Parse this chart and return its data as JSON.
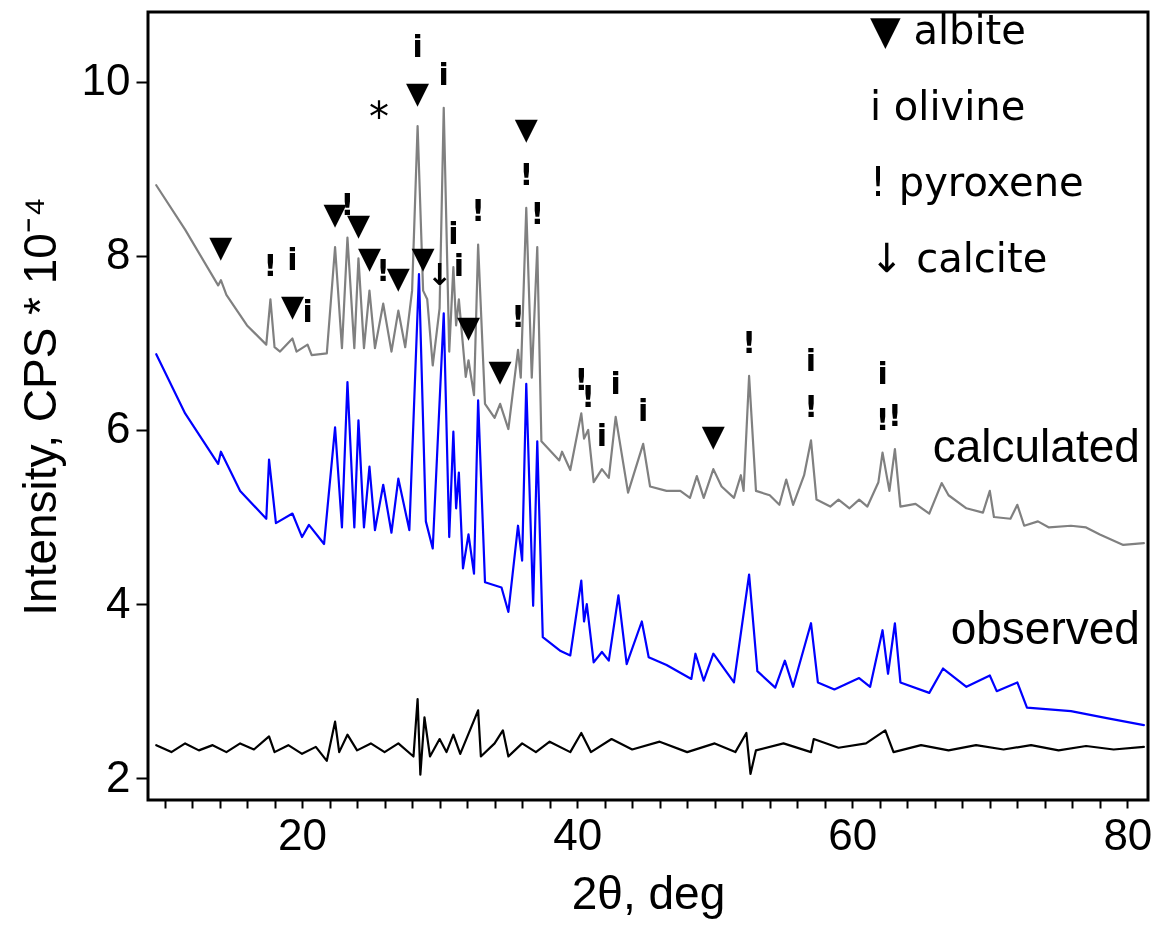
{
  "chart_data": {
    "type": "line",
    "xlabel": "2θ, deg",
    "ylabel": "Intensity, CPS * 10⁻⁴",
    "xlim": [
      8.8,
      81.5
    ],
    "ylim": [
      1.75,
      10.8
    ],
    "xticks": [
      {
        "value": 10,
        "label": null
      },
      {
        "value": 12,
        "label": null
      },
      {
        "value": 14,
        "label": null
      },
      {
        "value": 16,
        "label": null
      },
      {
        "value": 18,
        "label": null
      },
      20,
      {
        "value": 22,
        "label": null
      },
      {
        "value": 24,
        "label": null
      },
      {
        "value": 26,
        "label": null
      },
      {
        "value": 28,
        "label": null
      },
      {
        "value": 30,
        "label": null
      },
      {
        "value": 32,
        "label": null
      },
      {
        "value": 34,
        "label": null
      },
      {
        "value": 36,
        "label": null
      },
      {
        "value": 38,
        "label": null
      },
      40,
      {
        "value": 42,
        "label": null
      },
      {
        "value": 44,
        "label": null
      },
      {
        "value": 46,
        "label": null
      },
      {
        "value": 48,
        "label": null
      },
      {
        "value": 50,
        "label": null
      },
      {
        "value": 52,
        "label": null
      },
      {
        "value": 54,
        "label": null
      },
      {
        "value": 56,
        "label": null
      },
      {
        "value": 58,
        "label": null
      },
      60,
      {
        "value": 62,
        "label": null
      },
      {
        "value": 64,
        "label": null
      },
      {
        "value": 66,
        "label": null
      },
      {
        "value": 68,
        "label": null
      },
      {
        "value": 70,
        "label": null
      },
      {
        "value": 72,
        "label": null
      },
      {
        "value": 74,
        "label": null
      },
      {
        "value": 76,
        "label": null
      },
      {
        "value": 78,
        "label": null
      },
      80
    ],
    "yticks": [
      2,
      4,
      6,
      8,
      10
    ],
    "series": [
      {
        "name": "calculated",
        "color": "#808080",
        "x": [
          9.4,
          11.5,
          13.9,
          14.1,
          14.5,
          16.0,
          17.4,
          17.7,
          18.0,
          18.4,
          19.3,
          19.6,
          20.4,
          20.7,
          21.8,
          22.4,
          22.9,
          23.3,
          23.8,
          24.1,
          24.5,
          24.9,
          25.3,
          25.9,
          26.5,
          27.0,
          27.5,
          28.0,
          28.4,
          28.8,
          29.1,
          29.5,
          30.0,
          30.3,
          30.7,
          31.0,
          31.2,
          31.4,
          31.9,
          32.1,
          32.5,
          32.8,
          33.3,
          34.0,
          34.4,
          35.0,
          35.7,
          35.9,
          36.3,
          36.7,
          37.1,
          37.4,
          38.7,
          38.9,
          39.5,
          40.3,
          40.5,
          40.8,
          41.2,
          41.8,
          42.3,
          42.8,
          43.7,
          44.8,
          45.3,
          46.5,
          47.5,
          48.2,
          48.7,
          49.2,
          49.9,
          50.5,
          51.4,
          51.9,
          52.1,
          52.5,
          53.0,
          54.0,
          54.7,
          55.2,
          55.7,
          56.5,
          57.0,
          57.4,
          58.4,
          59.0,
          59.8,
          60.5,
          61.1,
          61.9,
          62.2,
          62.7,
          63.1,
          63.5,
          64.6,
          65.6,
          66.5,
          67.0,
          68.3,
          69.5,
          70.0,
          70.3,
          71.5,
          72.0,
          72.5,
          73.5,
          74.3,
          75.9,
          77.0,
          78.0,
          79.7,
          81.2
        ],
        "values": [
          8.81,
          8.3,
          7.66,
          7.72,
          7.55,
          7.2,
          6.98,
          7.5,
          6.95,
          6.9,
          7.05,
          6.9,
          6.98,
          6.86,
          6.88,
          8.1,
          6.94,
          8.21,
          6.94,
          7.97,
          6.94,
          7.6,
          6.94,
          7.45,
          6.9,
          7.37,
          6.95,
          7.6,
          9.49,
          7.6,
          7.5,
          6.74,
          7.4,
          9.7,
          6.9,
          7.87,
          7.2,
          7.5,
          6.61,
          6.8,
          6.4,
          8.13,
          6.3,
          6.14,
          6.3,
          6.01,
          6.92,
          6.6,
          8.55,
          6.6,
          8.1,
          5.87,
          5.65,
          5.75,
          5.54,
          6.19,
          5.9,
          6.0,
          5.4,
          5.55,
          5.45,
          6.15,
          5.28,
          5.84,
          5.35,
          5.3,
          5.3,
          5.22,
          5.47,
          5.22,
          5.55,
          5.35,
          5.22,
          5.48,
          5.3,
          6.62,
          5.3,
          5.25,
          5.14,
          5.43,
          5.14,
          5.48,
          5.88,
          5.2,
          5.12,
          5.2,
          5.1,
          5.2,
          5.12,
          5.4,
          5.74,
          5.3,
          5.78,
          5.12,
          5.15,
          5.04,
          5.39,
          5.25,
          5.1,
          5.05,
          5.3,
          5.0,
          4.98,
          5.14,
          4.9,
          4.95,
          4.88,
          4.9,
          4.88,
          4.8,
          4.68,
          4.7
        ]
      },
      {
        "name": "observed",
        "color": "#0000ff",
        "x": [
          9.4,
          11.5,
          13.9,
          14.1,
          15.5,
          17.4,
          17.6,
          18.1,
          19.3,
          20.0,
          20.5,
          21.6,
          22.4,
          22.9,
          23.3,
          23.8,
          24.1,
          24.5,
          24.9,
          25.3,
          25.9,
          26.5,
          27.0,
          27.8,
          28.5,
          29.0,
          29.5,
          30.3,
          30.7,
          31.0,
          31.2,
          31.4,
          31.7,
          32.1,
          32.5,
          32.8,
          33.3,
          34.5,
          35.0,
          35.7,
          36.0,
          36.3,
          36.8,
          37.1,
          37.5,
          38.8,
          39.5,
          40.3,
          40.5,
          40.7,
          41.2,
          41.8,
          42.3,
          43.0,
          43.6,
          44.7,
          45.2,
          46.5,
          48.3,
          48.6,
          49.2,
          49.9,
          51.4,
          52.5,
          53.1,
          54.4,
          55.1,
          55.7,
          57.0,
          57.5,
          58.7,
          60.5,
          61.3,
          62.2,
          62.6,
          63.1,
          63.5,
          65.6,
          66.6,
          68.3,
          70.0,
          70.5,
          72.0,
          72.7,
          75.9,
          78.5,
          81.2
        ],
        "values": [
          6.87,
          6.19,
          5.61,
          5.75,
          5.3,
          4.98,
          5.66,
          4.93,
          5.04,
          4.77,
          4.91,
          4.69,
          6.03,
          4.88,
          6.55,
          4.88,
          6.11,
          4.88,
          5.58,
          4.85,
          5.37,
          4.82,
          5.44,
          4.85,
          7.79,
          4.95,
          4.64,
          7.34,
          4.77,
          5.98,
          5.1,
          5.51,
          4.41,
          4.8,
          4.35,
          6.34,
          4.25,
          4.19,
          3.91,
          4.9,
          4.5,
          6.53,
          3.98,
          5.87,
          3.62,
          3.46,
          3.41,
          4.27,
          3.8,
          4.0,
          3.33,
          3.45,
          3.35,
          4.1,
          3.31,
          3.8,
          3.39,
          3.3,
          3.14,
          3.43,
          3.12,
          3.43,
          3.1,
          4.34,
          3.23,
          3.04,
          3.35,
          3.05,
          3.78,
          3.1,
          3.02,
          3.15,
          3.05,
          3.7,
          3.2,
          3.78,
          3.1,
          2.98,
          3.26,
          3.05,
          3.18,
          3.0,
          3.1,
          2.81,
          2.77,
          2.69,
          2.61
        ]
      },
      {
        "color": "#000000",
        "x": [
          9.4,
          10.5,
          11.5,
          12.5,
          13.5,
          14.5,
          15.5,
          16.5,
          17.6,
          18.0,
          19.0,
          20.0,
          21.0,
          21.8,
          22.4,
          22.7,
          23.3,
          24.0,
          25.0,
          26.0,
          27.0,
          28.1,
          28.4,
          28.6,
          28.9,
          29.3,
          30.0,
          30.5,
          31.0,
          31.5,
          32.8,
          33.0,
          34.0,
          34.6,
          35.0,
          36.0,
          37.0,
          38.0,
          39.5,
          40.3,
          41.0,
          42.5,
          44.0,
          46.0,
          48.0,
          50.0,
          51.5,
          52.3,
          52.6,
          53.0,
          55.0,
          57.0,
          57.2,
          59.0,
          61.0,
          62.4,
          63.0,
          65.0,
          67.0,
          69.0,
          71.0,
          73.0,
          75.0,
          77.0,
          79.0,
          81.2
        ],
        "values": [
          2.38,
          2.3,
          2.4,
          2.32,
          2.38,
          2.3,
          2.4,
          2.33,
          2.48,
          2.3,
          2.38,
          2.28,
          2.36,
          2.2,
          2.65,
          2.3,
          2.5,
          2.32,
          2.4,
          2.3,
          2.4,
          2.25,
          2.91,
          2.04,
          2.7,
          2.25,
          2.45,
          2.3,
          2.5,
          2.28,
          2.78,
          2.25,
          2.4,
          2.55,
          2.25,
          2.4,
          2.3,
          2.42,
          2.3,
          2.52,
          2.3,
          2.45,
          2.33,
          2.42,
          2.3,
          2.4,
          2.3,
          2.52,
          2.05,
          2.32,
          2.4,
          2.3,
          2.45,
          2.35,
          2.4,
          2.55,
          2.3,
          2.38,
          2.32,
          2.38,
          2.33,
          2.38,
          2.32,
          2.37,
          2.33,
          2.36
        ]
      }
    ],
    "annotations": [
      "▼ albite",
      "i olivine",
      "! pyroxene",
      "↓ calcite",
      "*",
      {
        "text": "▼",
        "x": 14.1,
        "y": 7.72
      },
      {
        "text": "!",
        "x": 17.7,
        "y": 7.5
      },
      {
        "text": "▼",
        "x": 19.3,
        "y": 7.05
      },
      {
        "text": "i",
        "x": 19.3,
        "y": 7.05
      },
      {
        "text": "i",
        "x": 20.4,
        "y": 6.98
      },
      {
        "text": "▼",
        "x": 22.4,
        "y": 8.1
      },
      {
        "text": "!",
        "x": 23.3,
        "y": 8.21
      },
      {
        "text": "▼",
        "x": 24.1,
        "y": 7.97
      },
      {
        "text": "▼",
        "x": 24.9,
        "y": 7.6
      },
      {
        "text": "!",
        "x": 25.9,
        "y": 7.45
      },
      {
        "text": "▼",
        "x": 27.0,
        "y": 7.37
      },
      {
        "text": "▼",
        "x": 28.4,
        "y": 9.49
      },
      {
        "text": "i",
        "x": 28.4,
        "y": 9.49
      },
      {
        "text": "▼",
        "x": 28.8,
        "y": 7.6
      },
      {
        "text": "↓",
        "x": 30.0,
        "y": 7.4
      },
      {
        "text": "i",
        "x": 30.3,
        "y": 9.7
      },
      {
        "text": "i",
        "x": 31.0,
        "y": 7.87
      },
      {
        "text": "i",
        "x": 31.4,
        "y": 7.5
      },
      {
        "text": "!",
        "x": 32.8,
        "y": 8.13
      },
      {
        "text": "▼",
        "x": 32.1,
        "y": 6.8
      },
      {
        "text": "▼",
        "x": 34.4,
        "y": 6.3
      },
      {
        "text": "!",
        "x": 35.7,
        "y": 6.92
      },
      {
        "text": "!",
        "x": 36.3,
        "y": 8.55
      },
      {
        "text": "▼",
        "x": 36.3,
        "y": 8.55
      },
      {
        "text": "!",
        "x": 37.1,
        "y": 8.1
      },
      {
        "text": "!",
        "x": 40.3,
        "y": 6.19
      },
      {
        "text": "!",
        "x": 40.8,
        "y": 6.0
      },
      {
        "text": "i",
        "x": 41.8,
        "y": 5.55
      },
      {
        "text": "i",
        "x": 42.8,
        "y": 6.15
      },
      {
        "text": "i",
        "x": 44.8,
        "y": 5.84
      },
      {
        "text": "▼",
        "x": 49.9,
        "y": 5.55
      },
      {
        "text": "!",
        "x": 52.5,
        "y": 6.62
      },
      {
        "text": "!",
        "x": 57.0,
        "y": 5.88
      },
      {
        "text": "i",
        "x": 57.0,
        "y": 5.88
      },
      {
        "text": "!",
        "x": 62.2,
        "y": 5.74
      },
      {
        "text": "i",
        "x": 62.2,
        "y": 5.74
      },
      {
        "text": "!",
        "x": 63.1,
        "y": 5.78
      }
    ]
  }
}
